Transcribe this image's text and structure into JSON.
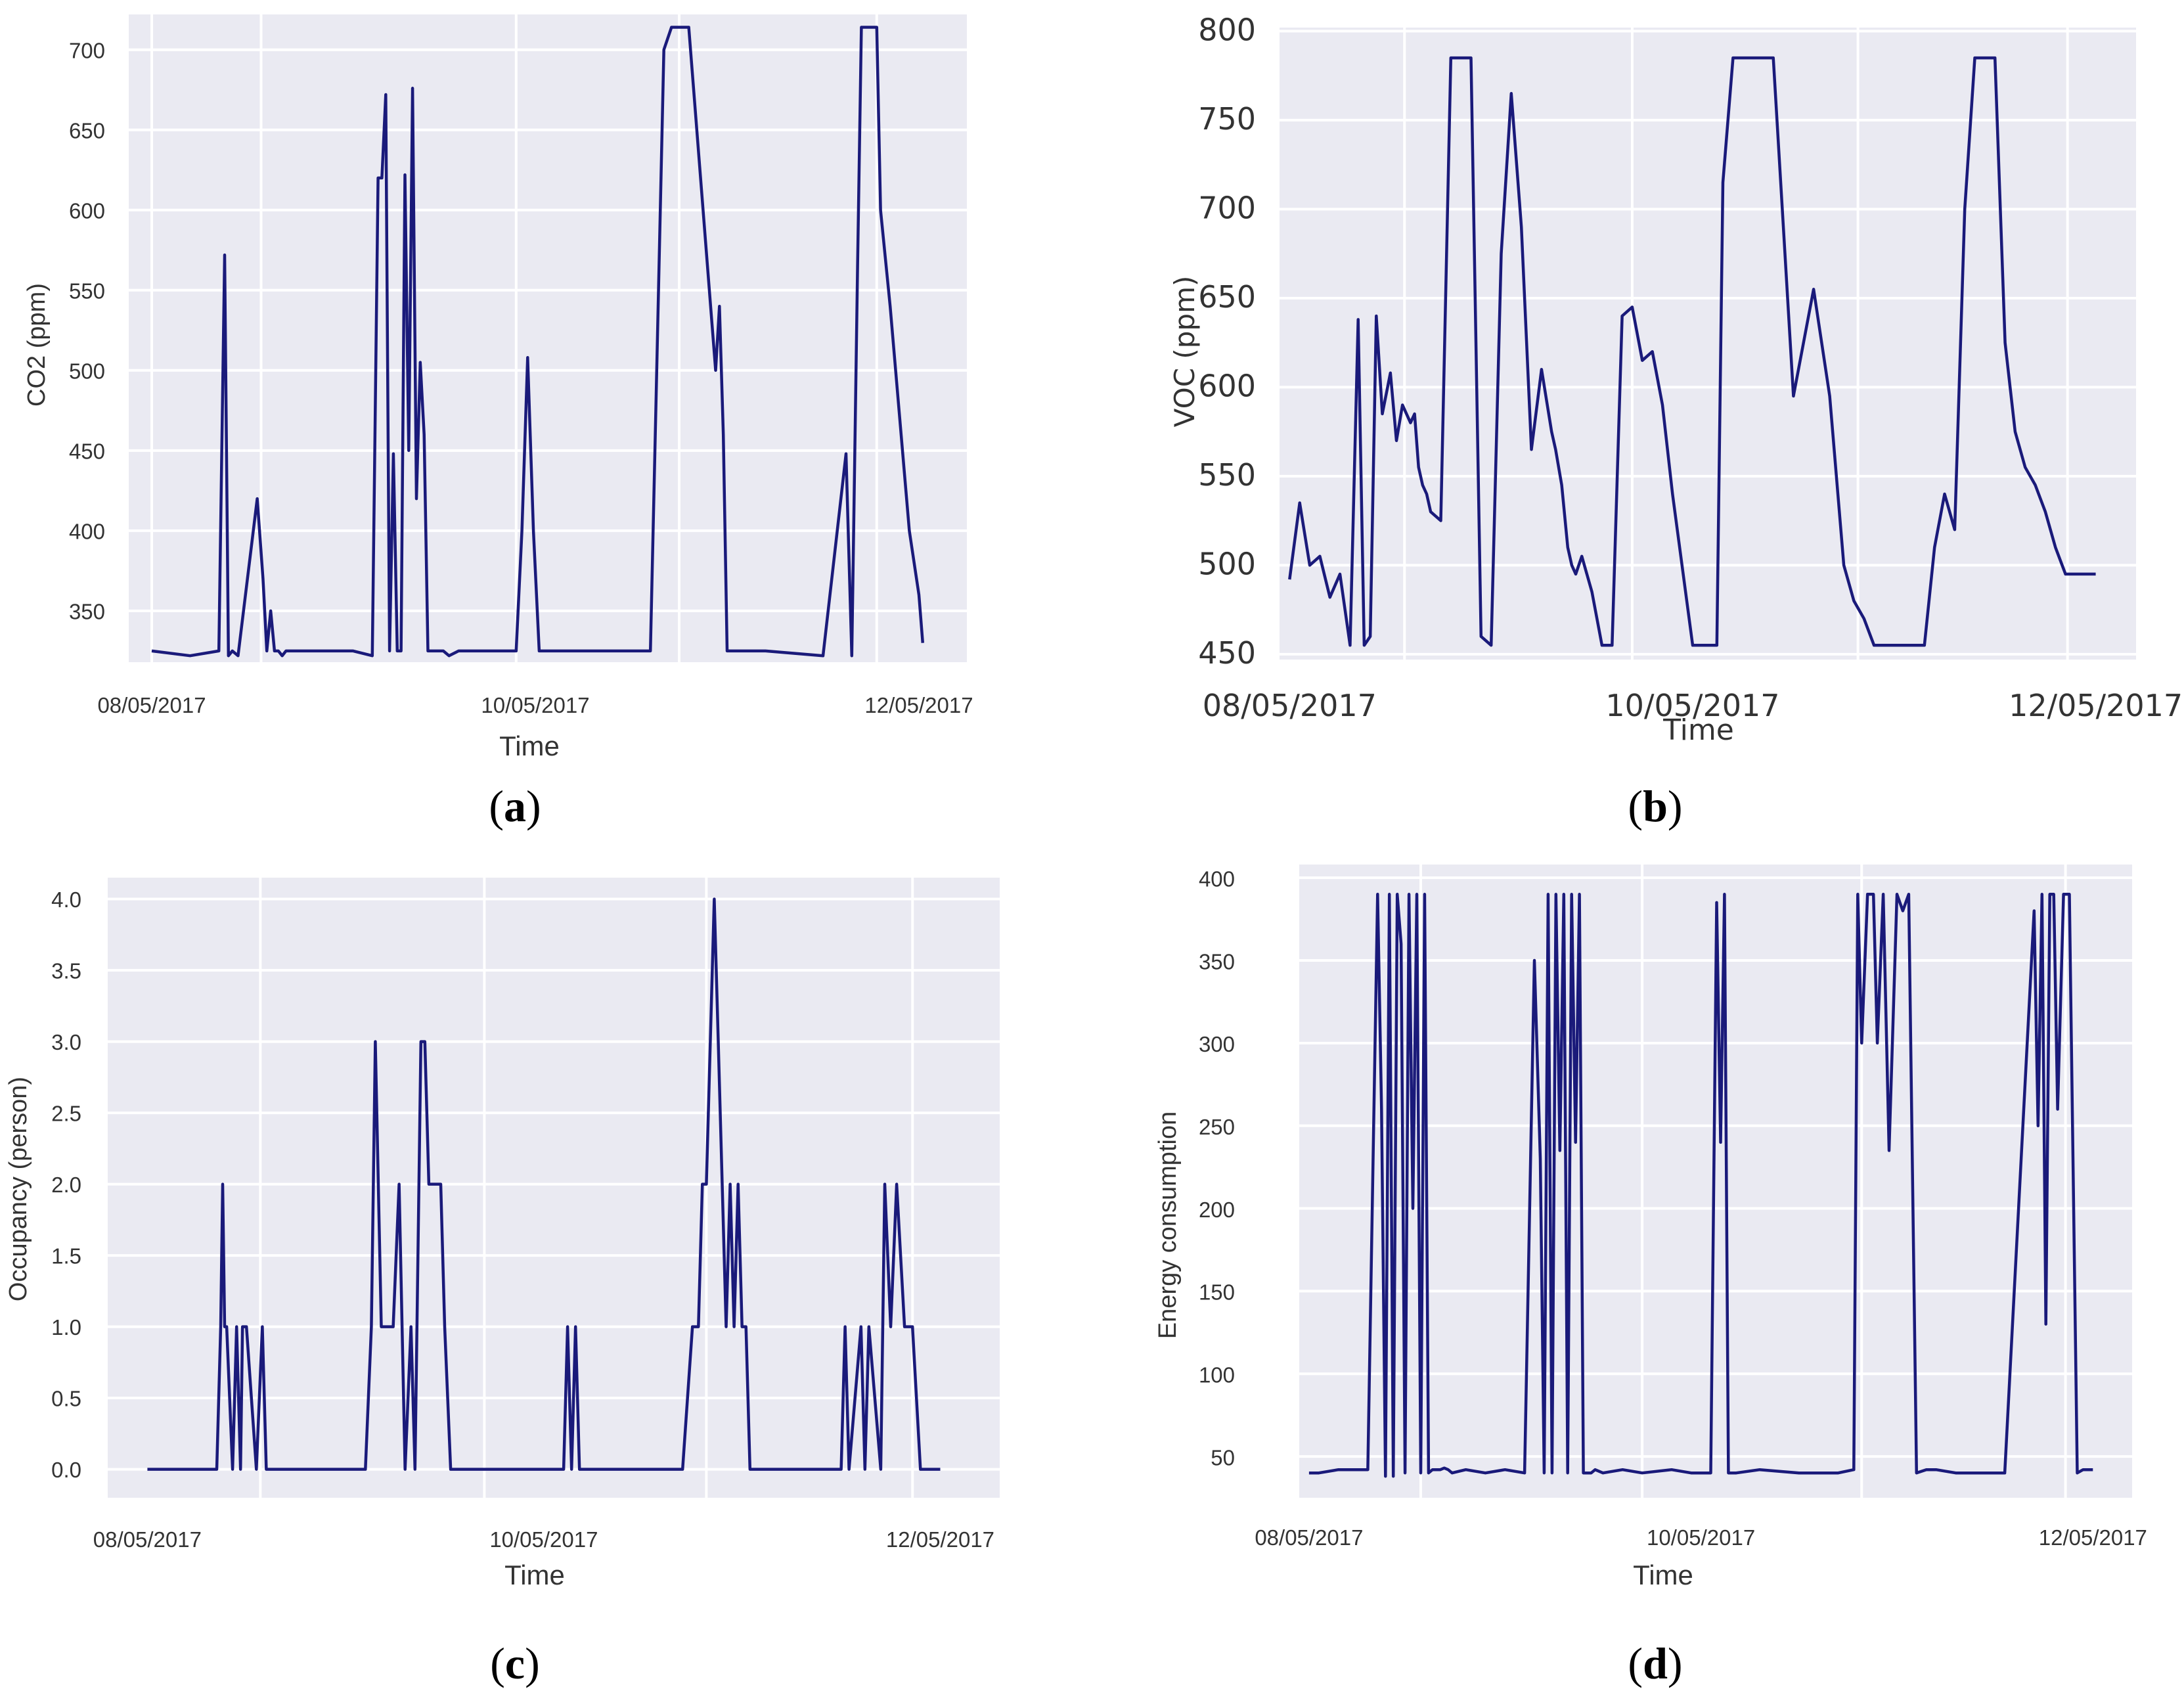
{
  "chart_data": [
    {
      "id": "a",
      "caption": "a",
      "type": "line",
      "title": "",
      "xlabel": "Time",
      "ylabel": "CO2 (ppm)",
      "xlim": [
        -0.12,
        4.25
      ],
      "ylim": [
        318,
        722
      ],
      "x_ticks": [
        {
          "label": "08/05/2017",
          "value": 0
        },
        {
          "label": "10/05/2017",
          "value": 2
        },
        {
          "label": "12/05/2017",
          "value": 4
        }
      ],
      "y_ticks": [
        350,
        400,
        450,
        500,
        550,
        600,
        650,
        700
      ],
      "x_grid": [
        0,
        0.57,
        1.9,
        2.75,
        3.78
      ],
      "series": [
        {
          "name": "CO2",
          "x": [
            0,
            0.2,
            0.35,
            0.38,
            0.4,
            0.42,
            0.45,
            0.55,
            0.58,
            0.6,
            0.62,
            0.64,
            0.66,
            0.68,
            0.7,
            1.05,
            1.15,
            1.18,
            1.2,
            1.22,
            1.24,
            1.26,
            1.28,
            1.3,
            1.32,
            1.34,
            1.36,
            1.38,
            1.4,
            1.42,
            1.44,
            1.46,
            1.48,
            1.5,
            1.52,
            1.55,
            1.6,
            1.9,
            1.93,
            1.96,
            1.99,
            2.02,
            2.05,
            2.1,
            2.6,
            2.63,
            2.67,
            2.71,
            2.75,
            2.8,
            2.94,
            2.96,
            2.98,
            3.0,
            3.02,
            3.04,
            3.06,
            3.08,
            3.12,
            3.2,
            3.5,
            3.62,
            3.65,
            3.68,
            3.7,
            3.73,
            3.76,
            3.78,
            3.8,
            3.85,
            3.9,
            3.95,
            4.0,
            4.02
          ],
          "values": [
            325,
            322,
            325,
            572,
            322,
            325,
            322,
            420,
            370,
            325,
            350,
            325,
            325,
            322,
            325,
            325,
            322,
            620,
            620,
            672,
            325,
            448,
            325,
            325,
            622,
            450,
            676,
            420,
            505,
            460,
            325,
            325,
            325,
            325,
            325,
            322,
            325,
            325,
            400,
            508,
            400,
            325,
            325,
            325,
            325,
            485,
            700,
            714,
            714,
            714,
            500,
            540,
            460,
            325,
            325,
            325,
            325,
            325,
            325,
            325,
            322,
            448,
            322,
            565,
            714,
            714,
            714,
            714,
            600,
            540,
            470,
            400,
            360,
            330
          ]
        }
      ]
    },
    {
      "id": "b",
      "caption": "b",
      "type": "line",
      "title": "",
      "xlabel": "Time",
      "ylabel": "VOC (ppm)",
      "xlim": [
        -0.05,
        4.2
      ],
      "ylim": [
        447,
        802
      ],
      "x_ticks": [
        {
          "label": "08/05/2017",
          "value": 0
        },
        {
          "label": "10/05/2017",
          "value": 2
        },
        {
          "label": "12/05/2017",
          "value": 4
        }
      ],
      "y_ticks": [
        450,
        500,
        550,
        600,
        650,
        700,
        750,
        800
      ],
      "x_grid": [
        0.57,
        1.7,
        2.82,
        3.86
      ],
      "series": [
        {
          "name": "VOC",
          "x": [
            0,
            0.05,
            0.1,
            0.15,
            0.2,
            0.25,
            0.3,
            0.34,
            0.37,
            0.4,
            0.43,
            0.46,
            0.5,
            0.53,
            0.56,
            0.6,
            0.62,
            0.64,
            0.66,
            0.68,
            0.7,
            0.75,
            0.8,
            0.85,
            0.9,
            0.95,
            1.0,
            1.05,
            1.1,
            1.15,
            1.2,
            1.25,
            1.3,
            1.32,
            1.35,
            1.38,
            1.4,
            1.42,
            1.45,
            1.5,
            1.55,
            1.6,
            1.65,
            1.7,
            1.75,
            1.8,
            1.85,
            1.9,
            2.0,
            2.05,
            2.08,
            2.12,
            2.15,
            2.2,
            2.3,
            2.4,
            2.5,
            2.6,
            2.68,
            2.75,
            2.8,
            2.85,
            2.9,
            2.95,
            3.0,
            3.05,
            3.08,
            3.1,
            3.15,
            3.2,
            3.25,
            3.3,
            3.35,
            3.4,
            3.45,
            3.5,
            3.55,
            3.6,
            3.65,
            3.7,
            3.75,
            3.8,
            3.85,
            3.9,
            3.95,
            4.0
          ],
          "values": [
            492,
            535,
            500,
            505,
            482,
            495,
            455,
            638,
            455,
            460,
            640,
            585,
            608,
            570,
            590,
            580,
            585,
            555,
            545,
            540,
            530,
            525,
            785,
            785,
            785,
            460,
            455,
            675,
            765,
            690,
            565,
            610,
            575,
            565,
            545,
            510,
            500,
            495,
            505,
            485,
            455,
            455,
            640,
            645,
            615,
            620,
            590,
            540,
            455,
            455,
            455,
            455,
            715,
            785,
            785,
            785,
            595,
            655,
            595,
            500,
            480,
            470,
            455,
            455,
            455,
            455,
            455,
            455,
            455,
            510,
            540,
            520,
            700,
            785,
            785,
            785,
            625,
            575,
            555,
            545,
            530,
            510,
            495,
            495,
            495,
            495
          ]
        }
      ]
    },
    {
      "id": "c",
      "caption": "c",
      "type": "line",
      "title": "",
      "xlabel": "Time",
      "ylabel": "Occupancy (person)",
      "xlim": [
        -0.2,
        4.3
      ],
      "ylim": [
        -0.2,
        4.15
      ],
      "x_ticks": [
        {
          "label": "08/05/2017",
          "value": 0
        },
        {
          "label": "10/05/2017",
          "value": 2
        },
        {
          "label": "12/05/2017",
          "value": 4
        }
      ],
      "y_ticks": [
        0.0,
        0.5,
        1.0,
        1.5,
        2.0,
        2.5,
        3.0,
        3.5,
        4.0
      ],
      "x_grid": [
        0.57,
        1.7,
        2.82,
        3.86
      ],
      "series": [
        {
          "name": "Occupancy",
          "x": [
            0,
            0.35,
            0.37,
            0.38,
            0.39,
            0.4,
            0.43,
            0.45,
            0.47,
            0.48,
            0.5,
            0.55,
            0.58,
            0.6,
            0.62,
            0.64,
            0.66,
            1.1,
            1.13,
            1.15,
            1.18,
            1.21,
            1.24,
            1.27,
            1.3,
            1.33,
            1.35,
            1.38,
            1.4,
            1.42,
            1.45,
            1.48,
            1.5,
            1.53,
            1.55,
            1.57,
            1.6,
            1.75,
            2.0,
            2.1,
            2.12,
            2.14,
            2.16,
            2.18,
            2.2,
            2.25,
            2.7,
            2.75,
            2.78,
            2.8,
            2.82,
            2.84,
            2.86,
            2.88,
            2.9,
            2.92,
            2.94,
            2.96,
            2.98,
            3.0,
            3.02,
            3.04,
            3.06,
            3.08,
            3.1,
            3.12,
            3.5,
            3.52,
            3.54,
            3.6,
            3.62,
            3.64,
            3.7,
            3.72,
            3.75,
            3.78,
            3.82,
            3.86,
            3.9,
            3.95,
            4.0
          ],
          "values": [
            0,
            0,
            1,
            2,
            1,
            1,
            0,
            1,
            0,
            1,
            1,
            0,
            1,
            0,
            0,
            0,
            0,
            0,
            1,
            3,
            1,
            1,
            1,
            2,
            0,
            1,
            0,
            3,
            3,
            2,
            2,
            2,
            1,
            0,
            0,
            0,
            0,
            0,
            0,
            0,
            1,
            0,
            1,
            0,
            0,
            0,
            0,
            1,
            1,
            2,
            2,
            3,
            4,
            3,
            2,
            1,
            2,
            1,
            2,
            1,
            1,
            0,
            0,
            0,
            0,
            0,
            0,
            1,
            0,
            1,
            0,
            1,
            0,
            2,
            1,
            2,
            1,
            1,
            0,
            0,
            0
          ]
        }
      ]
    },
    {
      "id": "d",
      "caption": "d",
      "type": "line",
      "title": "",
      "xlabel": "Time",
      "ylabel": "Energy consumption",
      "xlim": [
        -0.05,
        4.2
      ],
      "ylim": [
        25,
        408
      ],
      "x_ticks": [
        {
          "label": "08/05/2017",
          "value": 0
        },
        {
          "label": "10/05/2017",
          "value": 2
        },
        {
          "label": "12/05/2017",
          "value": 4
        }
      ],
      "y_ticks": [
        50,
        100,
        150,
        200,
        250,
        300,
        350,
        400
      ],
      "x_grid": [
        0.57,
        1.7,
        2.82,
        3.86
      ],
      "series": [
        {
          "name": "Energy",
          "x": [
            0,
            0.05,
            0.15,
            0.3,
            0.35,
            0.37,
            0.39,
            0.41,
            0.43,
            0.45,
            0.47,
            0.49,
            0.51,
            0.53,
            0.55,
            0.57,
            0.59,
            0.61,
            0.63,
            0.65,
            0.67,
            0.69,
            0.71,
            0.73,
            0.8,
            0.9,
            1.0,
            1.1,
            1.15,
            1.18,
            1.2,
            1.22,
            1.24,
            1.26,
            1.28,
            1.3,
            1.32,
            1.34,
            1.36,
            1.38,
            1.4,
            1.42,
            1.44,
            1.46,
            1.5,
            1.6,
            1.7,
            1.85,
            1.95,
            2.0,
            2.05,
            2.08,
            2.1,
            2.12,
            2.14,
            2.18,
            2.3,
            2.5,
            2.7,
            2.78,
            2.8,
            2.82,
            2.85,
            2.88,
            2.9,
            2.93,
            2.96,
            3.0,
            3.03,
            3.06,
            3.1,
            3.15,
            3.2,
            3.3,
            3.45,
            3.55,
            3.7,
            3.72,
            3.74,
            3.76,
            3.78,
            3.8,
            3.82,
            3.85,
            3.88,
            3.92,
            3.95,
            4.0
          ],
          "values": [
            40,
            40,
            42,
            42,
            390,
            260,
            38,
            390,
            38,
            390,
            360,
            40,
            390,
            200,
            390,
            40,
            390,
            40,
            42,
            42,
            42,
            43,
            42,
            40,
            42,
            40,
            42,
            40,
            350,
            230,
            40,
            390,
            40,
            390,
            235,
            390,
            40,
            390,
            240,
            390,
            40,
            40,
            40,
            42,
            40,
            42,
            40,
            42,
            40,
            40,
            40,
            385,
            240,
            390,
            40,
            40,
            42,
            40,
            40,
            42,
            390,
            300,
            390,
            390,
            300,
            390,
            235,
            390,
            380,
            390,
            40,
            42,
            42,
            40,
            40,
            40,
            380,
            250,
            390,
            130,
            390,
            390,
            260,
            390,
            390,
            40,
            42,
            42
          ]
        }
      ]
    }
  ]
}
